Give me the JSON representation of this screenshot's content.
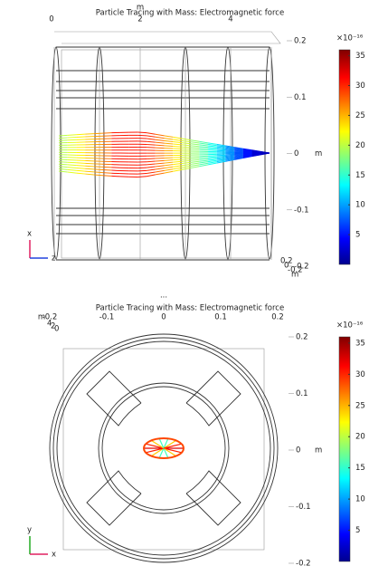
{
  "plots": [
    {
      "title": "Particle Tracing with Mass: Electromagnetic force",
      "top_axis": {
        "label": "m",
        "ticks": [
          "0",
          "2",
          "4"
        ]
      },
      "right_axis": {
        "label": "m",
        "ticks": [
          "0.2",
          "0.1",
          "0",
          "-0.1",
          "-0.2"
        ],
        "corner": [
          "0.2",
          "0",
          "-0.2",
          "m"
        ]
      },
      "triad": [
        "x",
        "z"
      ],
      "colorbar": {
        "exponent": "×10⁻¹⁶",
        "lim": [
          0,
          36
        ],
        "ticks": [
          35,
          30,
          25,
          20,
          15,
          10,
          5
        ]
      }
    },
    {
      "title": "Particle Tracing with Mass: Electromagnetic force",
      "top_axis": {
        "label": "m",
        "ticks": [
          "-0.2",
          "-0.1",
          "0",
          "0.1",
          "0.2"
        ],
        "corner": [
          "4",
          "2",
          "0"
        ]
      },
      "right_axis": {
        "label": "m",
        "ticks": [
          "0.2",
          "0.1",
          "0",
          "-0.1",
          "-0.2"
        ]
      },
      "triad": [
        "y",
        "x"
      ],
      "colorbar": {
        "exponent": "×10⁻¹⁶",
        "lim": [
          0,
          36
        ],
        "ticks": [
          35,
          30,
          25,
          20,
          15,
          10,
          5
        ]
      }
    }
  ],
  "separator": "..."
}
